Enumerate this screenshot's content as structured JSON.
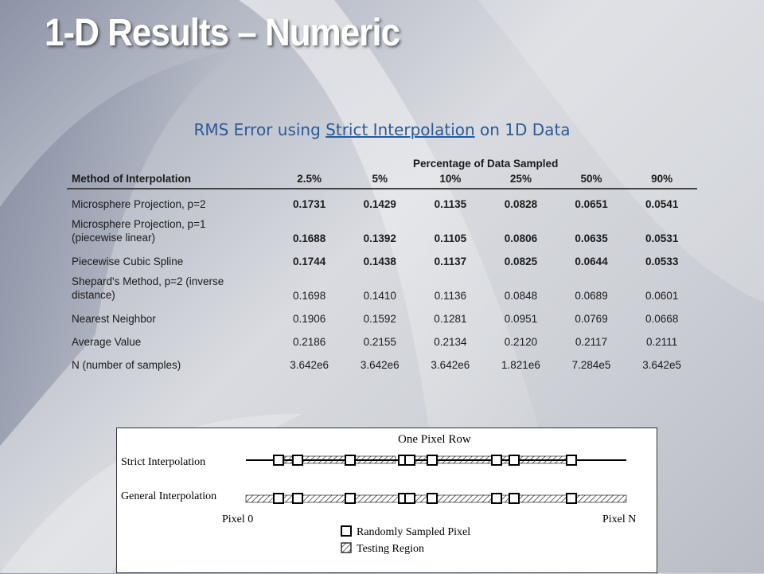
{
  "slide": {
    "title": "1-D Results – Numeric",
    "subtitle_prefix": "RMS Error using ",
    "subtitle_link": "Strict Interpolation",
    "subtitle_suffix": " on 1D Data"
  },
  "table": {
    "group_header": "Percentage of Data Sampled",
    "method_header": "Method of Interpolation",
    "columns": [
      "2.5%",
      "5%",
      "10%",
      "25%",
      "50%",
      "90%"
    ],
    "rows": [
      {
        "method": "Microsphere Projection, p=2",
        "bold": true,
        "values": [
          "0.1731",
          "0.1429",
          "0.1135",
          "0.0828",
          "0.0651",
          "0.0541"
        ]
      },
      {
        "method_line1": "Microsphere Projection, p=1",
        "method_line2": "(piecewise linear)",
        "bold": true,
        "values": [
          "0.1688",
          "0.1392",
          "0.1105",
          "0.0806",
          "0.0635",
          "0.0531"
        ]
      },
      {
        "method": "Piecewise Cubic Spline",
        "bold": true,
        "values": [
          "0.1744",
          "0.1438",
          "0.1137",
          "0.0825",
          "0.0644",
          "0.0533"
        ]
      },
      {
        "method_line1": "Shepard's Method, p=2 (inverse",
        "method_line2": "distance)",
        "bold": false,
        "values": [
          "0.1698",
          "0.1410",
          "0.1136",
          "0.0848",
          "0.0689",
          "0.0601"
        ]
      },
      {
        "method": "Nearest Neighbor",
        "bold": false,
        "values": [
          "0.1906",
          "0.1592",
          "0.1281",
          "0.0951",
          "0.0769",
          "0.0668"
        ]
      },
      {
        "method": "Average Value",
        "bold": false,
        "values": [
          "0.2186",
          "0.2155",
          "0.2134",
          "0.2120",
          "0.2117",
          "0.2111"
        ]
      },
      {
        "method": "N (number of samples)",
        "bold": false,
        "values": [
          "3.642e6",
          "3.642e6",
          "3.642e6",
          "1.821e6",
          "7.284e5",
          "3.642e5"
        ]
      }
    ]
  },
  "diagram": {
    "header": "One Pixel Row",
    "row1_label": "Strict Interpolation",
    "row2_label": "General Interpolation",
    "left_label": "Pixel 0",
    "right_label": "Pixel N",
    "legend_sampled": "Randomly Sampled Pixel",
    "legend_testing": "Testing Region"
  }
}
